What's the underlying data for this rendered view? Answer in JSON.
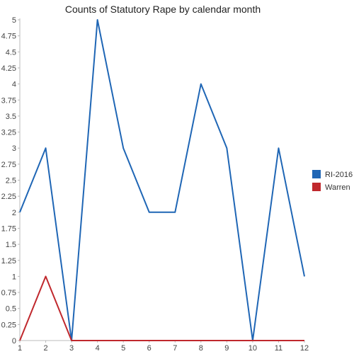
{
  "chart_data": {
    "type": "line",
    "title": "Counts of Statutory Rape by calendar month",
    "xlabel": "",
    "ylabel": "",
    "x": [
      1,
      2,
      3,
      4,
      5,
      6,
      7,
      8,
      9,
      10,
      11,
      12
    ],
    "x_tick_labels": [
      "1",
      "2",
      "3",
      "4",
      "5",
      "6",
      "7",
      "8",
      "9",
      "10",
      "11",
      "12"
    ],
    "ylim": [
      0,
      5
    ],
    "y_tick_labels": [
      "0",
      "0.25",
      "0.5",
      "0.75",
      "1",
      "1.25",
      "1.5",
      "1.75",
      "2",
      "2.25",
      "2.5",
      "2.75",
      "3",
      "3.25",
      "3.5",
      "3.75",
      "4",
      "4.25",
      "4.5",
      "4.75",
      "5"
    ],
    "grid": false,
    "legend_position": "right",
    "series": [
      {
        "name": "RI-2016",
        "color": "#1f66b5",
        "values": [
          2,
          3,
          0,
          5,
          3,
          2,
          2,
          4,
          3,
          0,
          3,
          1
        ]
      },
      {
        "name": "Warren",
        "color": "#c0282d",
        "values": [
          0,
          1,
          0,
          0,
          0,
          0,
          0,
          0,
          0,
          0,
          0,
          0
        ]
      }
    ]
  }
}
